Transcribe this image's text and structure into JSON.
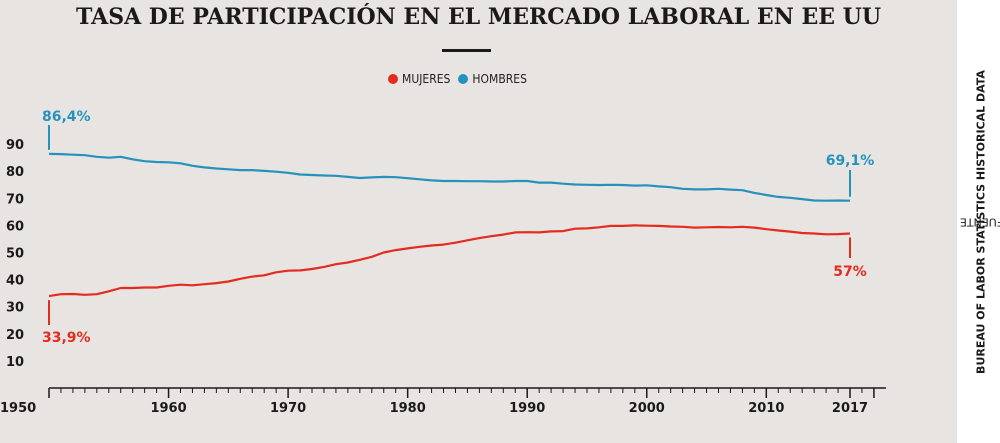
{
  "chart_data": {
    "type": "line",
    "title": "TASA DE PARTICIPACIÓN EN EL MERCADO LABORAL EN EE UU",
    "xlim": [
      1950,
      2019
    ],
    "ylim": [
      0,
      95
    ],
    "x_ticks": [
      1950,
      1960,
      1970,
      1980,
      1990,
      2000,
      2010,
      2017
    ],
    "y_ticks": [
      10,
      20,
      30,
      40,
      50,
      60,
      70,
      80,
      90
    ],
    "legend": {
      "placement": "top-center"
    },
    "series": [
      {
        "name": "MUJERES",
        "color": "#e42b20",
        "x": [
          1950,
          1951,
          1952,
          1953,
          1954,
          1955,
          1956,
          1957,
          1958,
          1959,
          1960,
          1961,
          1962,
          1963,
          1964,
          1965,
          1966,
          1967,
          1968,
          1969,
          1970,
          1971,
          1972,
          1973,
          1974,
          1975,
          1976,
          1977,
          1978,
          1979,
          1980,
          1981,
          1982,
          1983,
          1984,
          1985,
          1986,
          1987,
          1988,
          1989,
          1990,
          1991,
          1992,
          1993,
          1994,
          1995,
          1996,
          1997,
          1998,
          1999,
          2000,
          2001,
          2002,
          2003,
          2004,
          2005,
          2006,
          2007,
          2008,
          2009,
          2010,
          2011,
          2012,
          2013,
          2014,
          2015,
          2016,
          2017
        ],
        "values": [
          33.9,
          34.6,
          34.7,
          34.4,
          34.6,
          35.7,
          36.9,
          36.9,
          37.1,
          37.1,
          37.7,
          38.1,
          37.9,
          38.3,
          38.7,
          39.3,
          40.3,
          41.1,
          41.6,
          42.7,
          43.3,
          43.4,
          43.9,
          44.7,
          45.7,
          46.3,
          47.3,
          48.4,
          50.0,
          50.9,
          51.5,
          52.1,
          52.6,
          52.9,
          53.6,
          54.5,
          55.3,
          56.0,
          56.6,
          57.4,
          57.5,
          57.4,
          57.8,
          57.9,
          58.8,
          58.9,
          59.3,
          59.8,
          59.8,
          60.0,
          59.9,
          59.8,
          59.6,
          59.5,
          59.2,
          59.3,
          59.4,
          59.3,
          59.5,
          59.2,
          58.6,
          58.1,
          57.7,
          57.2,
          57.0,
          56.7,
          56.8,
          57.0
        ],
        "start_label": "33,9%",
        "end_label": "57%"
      },
      {
        "name": "HOMBRES",
        "color": "#2592bd",
        "x": [
          1950,
          1951,
          1952,
          1953,
          1954,
          1955,
          1956,
          1957,
          1958,
          1959,
          1960,
          1961,
          1962,
          1963,
          1964,
          1965,
          1966,
          1967,
          1968,
          1969,
          1970,
          1971,
          1972,
          1973,
          1974,
          1975,
          1976,
          1977,
          1978,
          1979,
          1980,
          1981,
          1982,
          1983,
          1984,
          1985,
          1986,
          1987,
          1988,
          1989,
          1990,
          1991,
          1992,
          1993,
          1994,
          1995,
          1996,
          1997,
          1998,
          1999,
          2000,
          2001,
          2002,
          2003,
          2004,
          2005,
          2006,
          2007,
          2008,
          2009,
          2010,
          2011,
          2012,
          2013,
          2014,
          2015,
          2016,
          2017
        ],
        "values": [
          86.4,
          86.3,
          86.1,
          85.9,
          85.3,
          85.0,
          85.3,
          84.4,
          83.7,
          83.4,
          83.3,
          82.9,
          82.0,
          81.4,
          81.0,
          80.7,
          80.4,
          80.4,
          80.1,
          79.8,
          79.4,
          78.8,
          78.6,
          78.4,
          78.3,
          77.9,
          77.5,
          77.7,
          77.9,
          77.8,
          77.4,
          77.0,
          76.6,
          76.4,
          76.4,
          76.3,
          76.3,
          76.2,
          76.2,
          76.4,
          76.4,
          75.8,
          75.8,
          75.4,
          75.1,
          75.0,
          74.9,
          75.0,
          74.9,
          74.7,
          74.8,
          74.4,
          74.1,
          73.5,
          73.3,
          73.3,
          73.5,
          73.2,
          73.0,
          72.0,
          71.2,
          70.5,
          70.2,
          69.7,
          69.2,
          69.1,
          69.2,
          69.1
        ],
        "start_label": "86,4%",
        "end_label": "69,1%"
      }
    ]
  },
  "source": {
    "prefix": "FUENTE ",
    "name": "BUREAU OF LABOR STATISTICS HISTORICAL DATA"
  }
}
